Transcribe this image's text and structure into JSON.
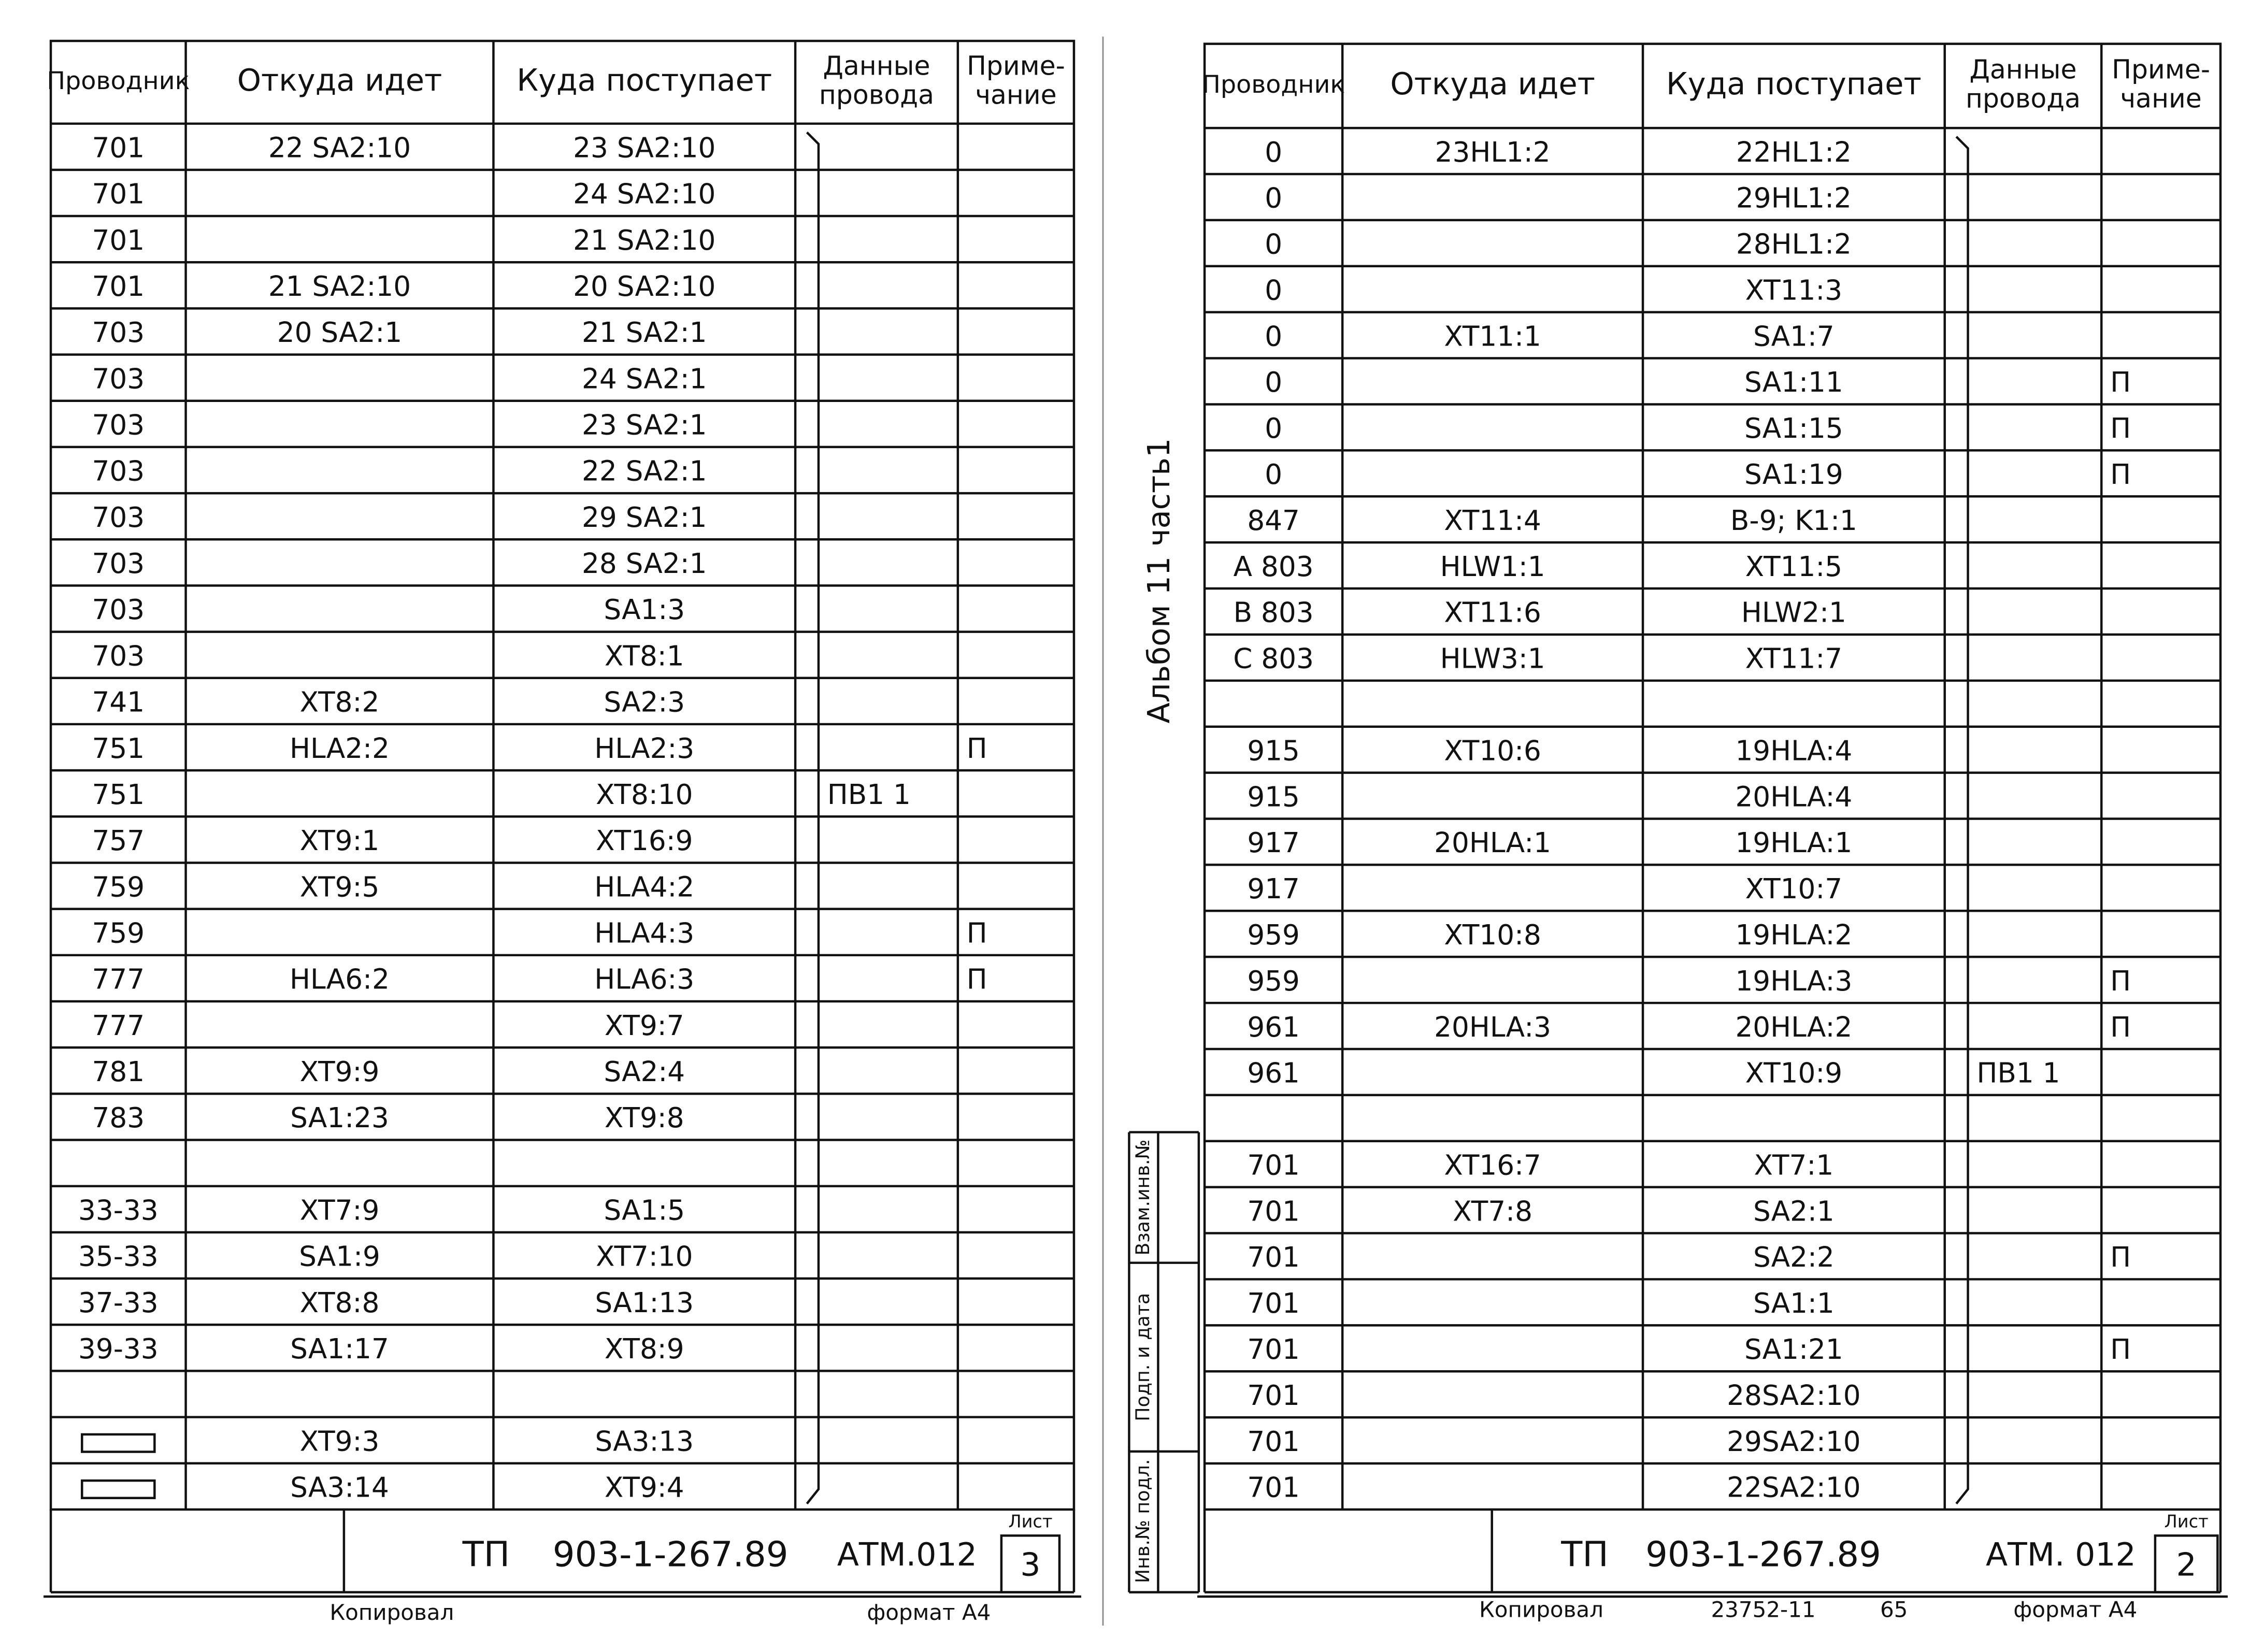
{
  "side_label": "Альбом 11 часть1",
  "side_stamps": [
    "Взам.инв.№",
    "Подп. и дата",
    "Инв.№ подл."
  ],
  "sheets": [
    {
      "headers": [
        [
          "Проводник"
        ],
        [
          "Откуда идет"
        ],
        [
          "Куда поступает"
        ],
        [
          "Данные",
          "провода"
        ],
        [
          "Приме-",
          "чание"
        ]
      ],
      "rows": [
        {
          "wire": "701",
          "from": "22 SA2:10",
          "to": "23 SA2:10"
        },
        {
          "wire": "701",
          "to": "24 SA2:10"
        },
        {
          "wire": "701",
          "to": "21 SA2:10"
        },
        {
          "wire": "701",
          "from": "21 SA2:10",
          "to": "20 SA2:10"
        },
        {
          "wire": "703",
          "from": "20 SA2:1",
          "to": "21 SA2:1"
        },
        {
          "wire": "703",
          "to": "24 SA2:1"
        },
        {
          "wire": "703",
          "to": "23 SA2:1"
        },
        {
          "wire": "703",
          "to": "22 SA2:1"
        },
        {
          "wire": "703",
          "to": "29 SA2:1"
        },
        {
          "wire": "703",
          "to": "28 SA2:1"
        },
        {
          "wire": "703",
          "to": "SA1:3"
        },
        {
          "wire": "703",
          "to": "XT8:1"
        },
        {
          "wire": "741",
          "from": "XT8:2",
          "to": "SA2:3"
        },
        {
          "wire": "751",
          "from": "HLA2:2",
          "to": "HLA2:3",
          "note": "П"
        },
        {
          "wire": "751",
          "to": "XT8:10",
          "data": "ПВ1 1"
        },
        {
          "wire": "757",
          "from": "XT9:1",
          "to": "XT16:9"
        },
        {
          "wire": "759",
          "from": "XT9:5",
          "to": "HLA4:2"
        },
        {
          "wire": "759",
          "to": "HLA4:3",
          "note": "П"
        },
        {
          "wire": "777",
          "from": "HLA6:2",
          "to": "HLA6:3",
          "note": "П"
        },
        {
          "wire": "777",
          "to": "XT9:7"
        },
        {
          "wire": "781",
          "from": "XT9:9",
          "to": "SA2:4"
        },
        {
          "wire": "783",
          "from": "SA1:23",
          "to": "XT9:8"
        },
        {},
        {
          "wire": "33-33",
          "from": "XT7:9",
          "to": "SA1:5"
        },
        {
          "wire": "35-33",
          "from": "SA1:9",
          "to": "XT7:10"
        },
        {
          "wire": "37-33",
          "from": "XT8:8",
          "to": "SA1:13"
        },
        {
          "wire": "39-33",
          "from": "SA1:17",
          "to": "XT8:9"
        },
        {},
        {
          "from": "XT9:3",
          "to": "SA3:13"
        },
        {
          "from": "SA3:14",
          "to": "XT9:4"
        }
      ],
      "stamp": {
        "code": "ТП",
        "number": "903-1-267.89",
        "doc": "АТМ.012",
        "sheet_label": "Лист",
        "sheet": "3"
      },
      "footer": [
        "Копировал",
        "формат А4"
      ]
    },
    {
      "headers": [
        [
          "Проводник"
        ],
        [
          "Откуда идет"
        ],
        [
          "Куда поступает"
        ],
        [
          "Данные",
          "провода"
        ],
        [
          "Приме-",
          "чание"
        ]
      ],
      "rows": [
        {
          "wire": "0",
          "from": "23HL1:2",
          "to": "22HL1:2"
        },
        {
          "wire": "0",
          "to": "29HL1:2"
        },
        {
          "wire": "0",
          "to": "28HL1:2"
        },
        {
          "wire": "0",
          "to": "XT11:3"
        },
        {
          "wire": "0",
          "from": "XT11:1",
          "to": "SA1:7"
        },
        {
          "wire": "0",
          "to": "SA1:11",
          "note": "П"
        },
        {
          "wire": "0",
          "to": "SA1:15",
          "note": "П"
        },
        {
          "wire": "0",
          "to": "SA1:19",
          "note": "П"
        },
        {
          "wire": "847",
          "from": "XT11:4",
          "to": "B-9; K1:1"
        },
        {
          "wire": "A 803",
          "from": "HLW1:1",
          "to": "XT11:5"
        },
        {
          "wire": "B 803",
          "from": "XT11:6",
          "to": "HLW2:1"
        },
        {
          "wire": "C 803",
          "from": "HLW3:1",
          "to": "XT11:7"
        },
        {},
        {
          "wire": "915",
          "from": "XT10:6",
          "to": "19HLA:4"
        },
        {
          "wire": "915",
          "to": "20HLA:4"
        },
        {
          "wire": "917",
          "from": "20HLA:1",
          "to": "19HLA:1"
        },
        {
          "wire": "917",
          "to": "XT10:7"
        },
        {
          "wire": "959",
          "from": "XT10:8",
          "to": "19HLA:2"
        },
        {
          "wire": "959",
          "to": "19HLA:3",
          "note": "П"
        },
        {
          "wire": "961",
          "from": "20HLA:3",
          "to": "20HLA:2",
          "note": "П"
        },
        {
          "wire": "961",
          "to": "XT10:9",
          "data": "ПВ1 1"
        },
        {},
        {
          "wire": "701",
          "from": "XT16:7",
          "to": "XT7:1"
        },
        {
          "wire": "701",
          "from": "XT7:8",
          "to": "SA2:1"
        },
        {
          "wire": "701",
          "to": "SA2:2",
          "note": "П"
        },
        {
          "wire": "701",
          "to": "SA1:1"
        },
        {
          "wire": "701",
          "to": "SA1:21",
          "note": "П"
        },
        {
          "wire": "701",
          "to": "28SA2:10"
        },
        {
          "wire": "701",
          "to": "29SA2:10"
        },
        {
          "wire": "701",
          "to": "22SA2:10"
        }
      ],
      "stamp": {
        "code": "ТП",
        "number": "903-1-267.89",
        "doc": "АТМ. 012",
        "sheet_label": "Лист",
        "sheet": "2"
      },
      "footer": [
        "Копировал",
        "23752-11",
        "65",
        "формат А4"
      ]
    }
  ]
}
